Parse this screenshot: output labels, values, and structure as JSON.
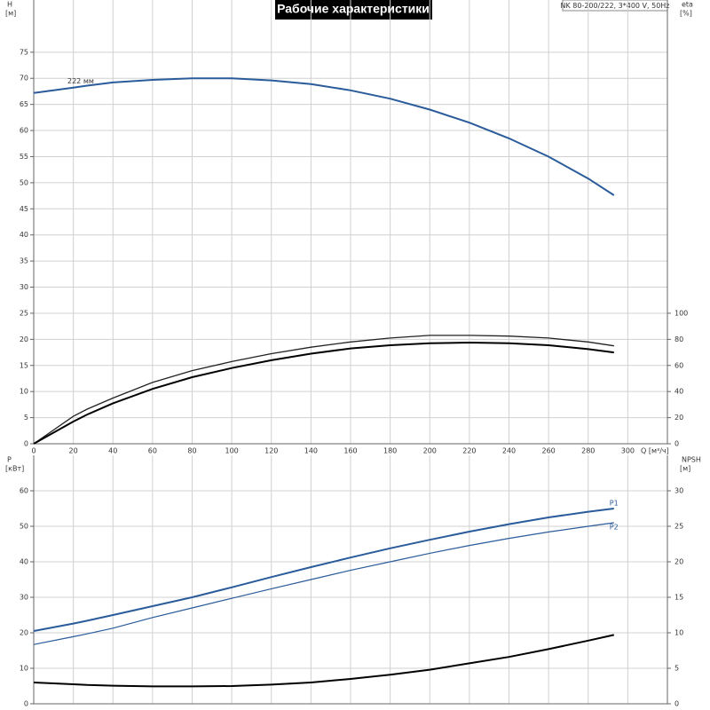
{
  "title": "Рабочие характеристики",
  "subtitle": "NK 80-200/222, 3*400 V, 50Hz",
  "chart_data": [
    {
      "type": "line",
      "xlabel": "Q [м³/ч]",
      "ylabel": "H",
      "yunit": "[м]",
      "y2label": "eta",
      "y2unit": "[%]",
      "xlim": [
        0,
        320
      ],
      "xticks": [
        0,
        20,
        40,
        60,
        80,
        100,
        120,
        140,
        160,
        180,
        200,
        220,
        240,
        260,
        280,
        300
      ],
      "xtick_labels": true,
      "ylim": [
        0,
        85
      ],
      "yticks": [
        0,
        5,
        10,
        15,
        20,
        25,
        30,
        35,
        40,
        45,
        50,
        55,
        60,
        65,
        70,
        75
      ],
      "y2lim": [
        0,
        340
      ],
      "y2ticks": [
        0,
        20,
        40,
        60,
        80,
        100
      ],
      "grid": true,
      "x": [
        0,
        20,
        27,
        40,
        60,
        80,
        100,
        120,
        140,
        160,
        180,
        200,
        220,
        240,
        260,
        280,
        293
      ],
      "series": [
        {
          "name": "222 мм",
          "name_at": "start",
          "color": "#2a5b9a",
          "width": 2,
          "values": [
            67.2,
            68.2,
            68.6,
            69.2,
            69.7,
            70.0,
            70.0,
            69.6,
            68.9,
            67.7,
            66.1,
            64.0,
            61.5,
            58.5,
            55.0,
            50.8,
            47.6
          ]
        },
        {
          "axis": "y2",
          "color": "#222222",
          "width": 1.3,
          "values": [
            0,
            21,
            26.5,
            35,
            47,
            56,
            63,
            69,
            74,
            78,
            81,
            83,
            83,
            82.5,
            81,
            78,
            75
          ]
        },
        {
          "axis": "y2",
          "color": "#000000",
          "width": 2,
          "values": [
            0,
            17,
            22.4,
            31,
            42,
            51,
            58,
            64,
            69,
            73,
            75.5,
            77,
            77.5,
            77,
            75.5,
            72.5,
            70
          ]
        }
      ]
    },
    {
      "type": "line",
      "ylabel": "P",
      "yunit": "[кВт]",
      "y2label": "NPSH",
      "y2unit": "[м]",
      "xlim": [
        0,
        320
      ],
      "xticks": [
        0,
        20,
        40,
        60,
        80,
        100,
        120,
        140,
        160,
        180,
        200,
        220,
        240,
        260,
        280,
        300
      ],
      "xtick_labels": false,
      "ylim": [
        0,
        70
      ],
      "yticks": [
        0,
        10,
        20,
        30,
        40,
        50,
        60
      ],
      "y2lim": [
        0,
        35
      ],
      "y2ticks": [
        0,
        5,
        10,
        15,
        20,
        25,
        30
      ],
      "grid": true,
      "x": [
        0,
        20,
        27,
        40,
        60,
        80,
        100,
        120,
        140,
        160,
        180,
        200,
        220,
        240,
        260,
        280,
        293
      ],
      "series": [
        {
          "name": "P1",
          "name_at": "end",
          "color": "#2a5b9a",
          "width": 2,
          "values": [
            20.5,
            22.6,
            23.4,
            25.0,
            27.5,
            30.0,
            32.8,
            35.7,
            38.5,
            41.2,
            43.8,
            46.2,
            48.5,
            50.6,
            52.5,
            54.1,
            55.0
          ]
        },
        {
          "name": "P2",
          "name_at": "end",
          "color": "#2a5b9a",
          "width": 1.2,
          "values": [
            16.7,
            18.9,
            19.7,
            21.3,
            24.3,
            27.0,
            29.7,
            32.4,
            35.0,
            37.6,
            40.0,
            42.4,
            44.6,
            46.6,
            48.4,
            50.0,
            51.0
          ]
        },
        {
          "axis": "y2",
          "color": "#000000",
          "width": 2,
          "values": [
            3.0,
            2.75,
            2.65,
            2.55,
            2.45,
            2.45,
            2.5,
            2.7,
            3.0,
            3.5,
            4.1,
            4.8,
            5.7,
            6.6,
            7.7,
            8.9,
            9.7
          ]
        }
      ]
    }
  ]
}
